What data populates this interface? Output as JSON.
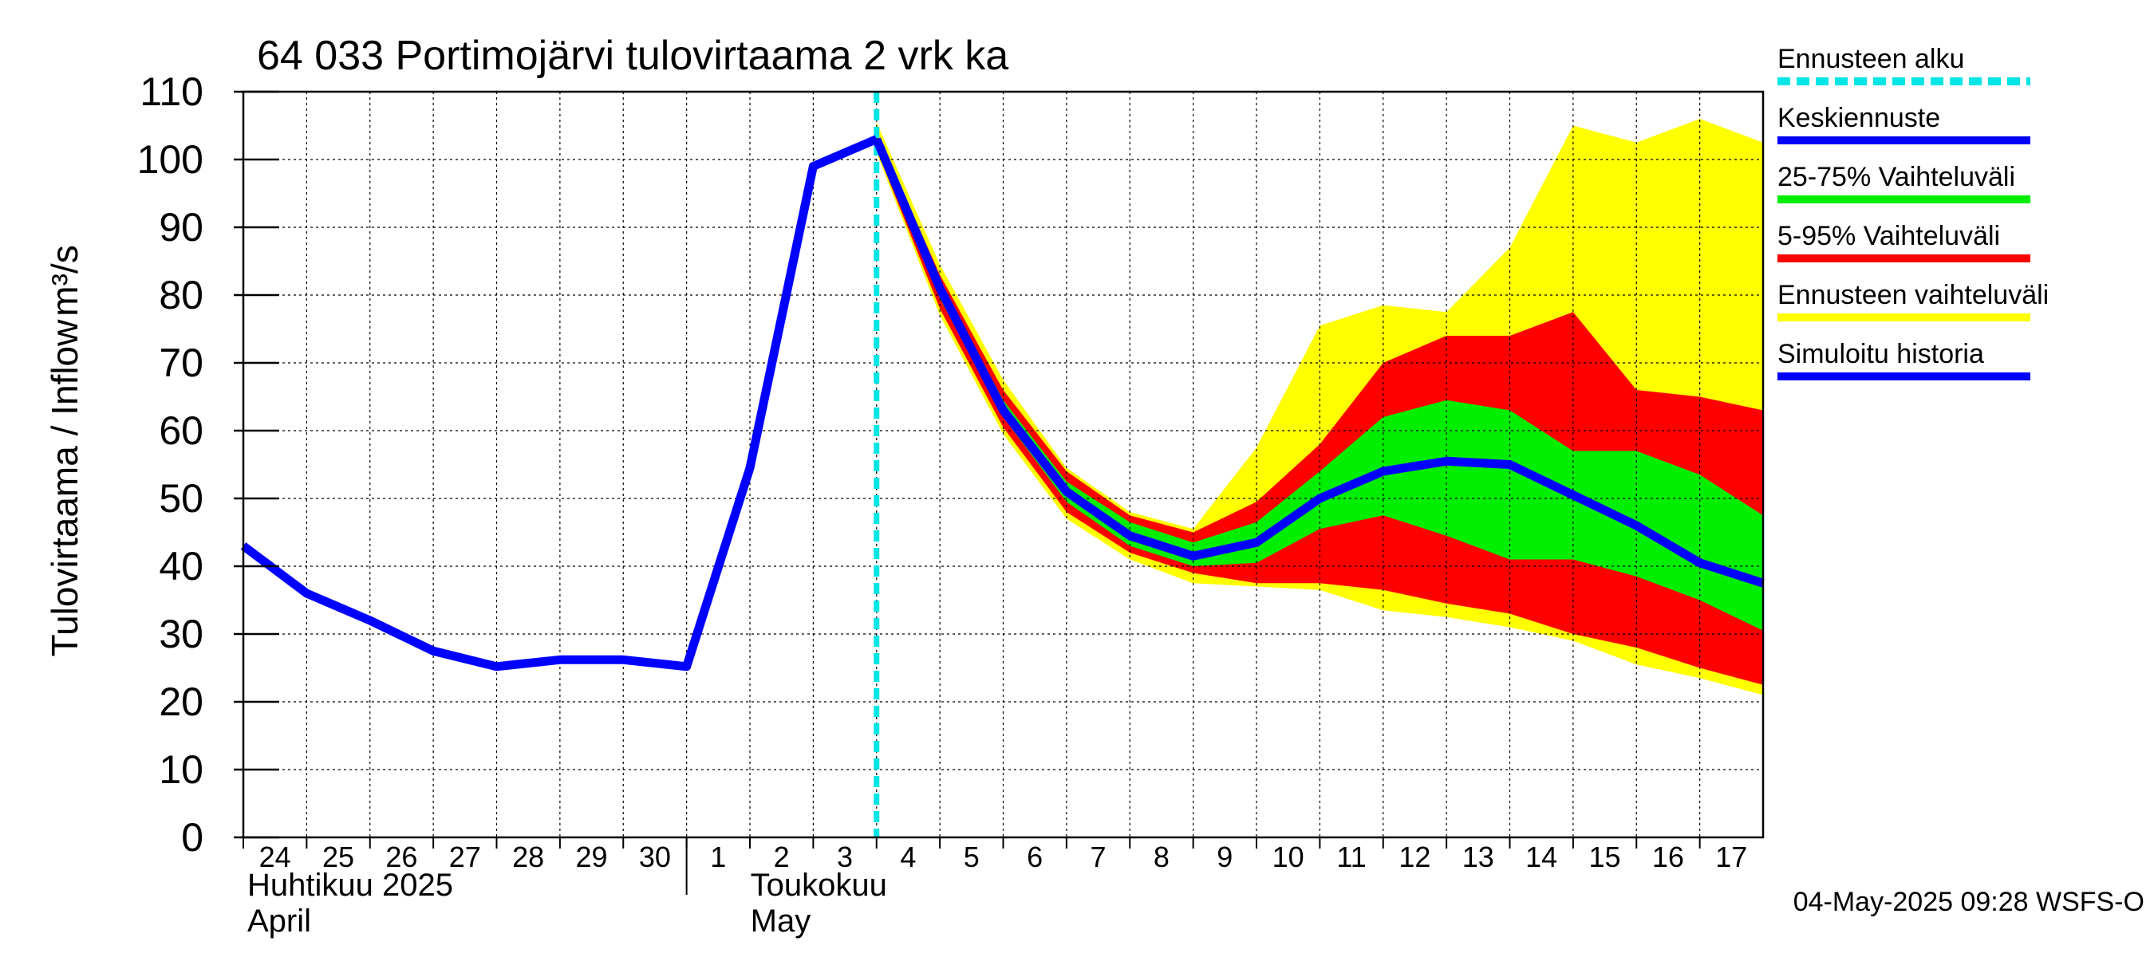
{
  "chart_data": {
    "type": "area",
    "title": "64 033 Portimojärvi tulovirtaama 2 vrk ka",
    "ylabel": "Tulovirtaama / Inflow",
    "yunit": "m³/s",
    "ylim": [
      0,
      110
    ],
    "yticks": [
      0,
      10,
      20,
      30,
      40,
      50,
      60,
      70,
      80,
      90,
      100,
      110
    ],
    "x_range": [
      "2025-04-24",
      "2025-05-18"
    ],
    "x_tick_labels": [
      "24",
      "25",
      "26",
      "27",
      "28",
      "29",
      "30",
      "1",
      "2",
      "3",
      "4",
      "5",
      "6",
      "7",
      "8",
      "9",
      "10",
      "11",
      "12",
      "13",
      "14",
      "15",
      "16",
      "17"
    ],
    "month_labels": [
      {
        "fi": "Huhtikuu  2025",
        "en": "April"
      },
      {
        "fi": "Toukokuu",
        "en": "May"
      }
    ],
    "grid": true,
    "forecast_start": "2025-05-04",
    "legend": [
      {
        "label": "Ennusteen alku",
        "color": "#00e5e5",
        "style": "dashed"
      },
      {
        "label": "Keskiennuste",
        "color": "#0000ff",
        "style": "solid"
      },
      {
        "label": "25-75% Vaihteluväli",
        "color": "#00ee00",
        "style": "solid"
      },
      {
        "label": "5-95% Vaihteluväli",
        "color": "#ff0000",
        "style": "solid"
      },
      {
        "label": "Ennusteen vaihteluväli",
        "color": "#ffff00",
        "style": "solid"
      },
      {
        "label": "Simuloitu historia",
        "color": "#0000ff",
        "style": "solid"
      }
    ],
    "series": [
      {
        "name": "Simuloitu historia",
        "color": "#0000ff",
        "points": [
          {
            "x": "2025-04-24",
            "y": 43
          },
          {
            "x": "2025-04-25",
            "y": 36
          },
          {
            "x": "2025-04-26",
            "y": 32
          },
          {
            "x": "2025-04-27",
            "y": 27.5
          },
          {
            "x": "2025-04-28",
            "y": 25.2
          },
          {
            "x": "2025-04-29",
            "y": 26.2
          },
          {
            "x": "2025-04-30",
            "y": 26.2
          },
          {
            "x": "2025-05-01",
            "y": 25.2
          },
          {
            "x": "2025-05-02",
            "y": 54.5
          },
          {
            "x": "2025-05-03",
            "y": 99
          },
          {
            "x": "2025-05-04",
            "y": 103
          }
        ]
      },
      {
        "name": "Keskiennuste",
        "color": "#0000ff",
        "points": [
          {
            "x": "2025-05-04",
            "y": 103
          },
          {
            "x": "2025-05-05",
            "y": 81
          },
          {
            "x": "2025-05-06",
            "y": 63
          },
          {
            "x": "2025-05-07",
            "y": 51
          },
          {
            "x": "2025-05-08",
            "y": 44.5
          },
          {
            "x": "2025-05-09",
            "y": 41.5
          },
          {
            "x": "2025-05-10",
            "y": 43.5
          },
          {
            "x": "2025-05-11",
            "y": 50
          },
          {
            "x": "2025-05-12",
            "y": 54
          },
          {
            "x": "2025-05-13",
            "y": 55.5
          },
          {
            "x": "2025-05-14",
            "y": 55
          },
          {
            "x": "2025-05-15",
            "y": 50.5
          },
          {
            "x": "2025-05-16",
            "y": 46
          },
          {
            "x": "2025-05-17",
            "y": 40.5
          },
          {
            "x": "2025-05-18",
            "y": 37.5
          }
        ]
      }
    ],
    "bands": [
      {
        "name": "Ennusteen vaihteluväli",
        "color": "#ffff00",
        "x": [
          "2025-05-04",
          "2025-05-05",
          "2025-05-06",
          "2025-05-07",
          "2025-05-08",
          "2025-05-09",
          "2025-05-10",
          "2025-05-11",
          "2025-05-12",
          "2025-05-13",
          "2025-05-14",
          "2025-05-15",
          "2025-05-16",
          "2025-05-17",
          "2025-05-18"
        ],
        "upper": [
          105.5,
          84.5,
          67.5,
          54.5,
          48,
          45.5,
          57.5,
          75.5,
          78.5,
          77.5,
          87,
          105,
          102.5,
          106,
          102.5
        ],
        "lower": [
          101,
          77,
          59.5,
          47,
          41,
          37.5,
          37,
          36.5,
          33.5,
          32.5,
          31,
          29,
          25.5,
          23.5,
          21
        ]
      },
      {
        "name": "5-95% Vaihteluväli",
        "color": "#ff0000",
        "x": [
          "2025-05-04",
          "2025-05-05",
          "2025-05-06",
          "2025-05-07",
          "2025-05-08",
          "2025-05-09",
          "2025-05-10",
          "2025-05-11",
          "2025-05-12",
          "2025-05-13",
          "2025-05-14",
          "2025-05-15",
          "2025-05-16",
          "2025-05-17",
          "2025-05-18"
        ],
        "upper": [
          104,
          83,
          66,
          54,
          47.5,
          45,
          49.5,
          58,
          70,
          74,
          74,
          77.5,
          66,
          65,
          63
        ],
        "lower": [
          101.5,
          78,
          60.5,
          48,
          42,
          39,
          37.5,
          37.5,
          36.5,
          34.5,
          33,
          30,
          28,
          25,
          22.5
        ]
      },
      {
        "name": "25-75% Vaihteluväli",
        "color": "#00ee00",
        "x": [
          "2025-05-04",
          "2025-05-05",
          "2025-05-06",
          "2025-05-07",
          "2025-05-08",
          "2025-05-09",
          "2025-05-10",
          "2025-05-11",
          "2025-05-12",
          "2025-05-13",
          "2025-05-14",
          "2025-05-15",
          "2025-05-16",
          "2025-05-17",
          "2025-05-18"
        ],
        "upper": [
          103.5,
          82,
          64.5,
          52.5,
          46.5,
          43.5,
          46.5,
          54,
          62,
          64.5,
          63,
          57,
          57,
          53.5,
          47.5
        ],
        "lower": [
          102.5,
          79.5,
          62,
          49.5,
          43,
          40,
          40.5,
          45.5,
          47.5,
          44.5,
          41,
          41,
          38.5,
          35,
          30.5
        ]
      }
    ]
  },
  "footer": "04-May-2025 09:28 WSFS-O"
}
